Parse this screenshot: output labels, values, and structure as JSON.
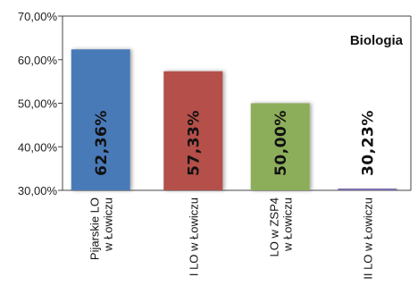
{
  "chart_data": {
    "type": "bar",
    "title": "Biologia",
    "categories": [
      [
        "Pijarskie LO",
        "w Łowiczu"
      ],
      [
        "I LO w Łowiczu"
      ],
      [
        "LO w ZSP4",
        "w Łowiczu"
      ],
      [
        "II LO w Łowiczu"
      ]
    ],
    "values": [
      62.36,
      57.33,
      50.0,
      30.23
    ],
    "value_labels": [
      "62,36%",
      "57,33%",
      "50,00%",
      "30,23%"
    ],
    "colors": [
      "#4a7ab8",
      "#b4504a",
      "#8cae5a",
      "#7f6fb0"
    ],
    "ylim": [
      30,
      70
    ],
    "yticks": [
      30,
      40,
      50,
      60,
      70
    ],
    "ytick_labels": [
      "30,00%",
      "40,00%",
      "50,00%",
      "60,00%",
      "70,00%"
    ],
    "xlabel": "",
    "ylabel": "",
    "grid": false,
    "legend": "none"
  }
}
